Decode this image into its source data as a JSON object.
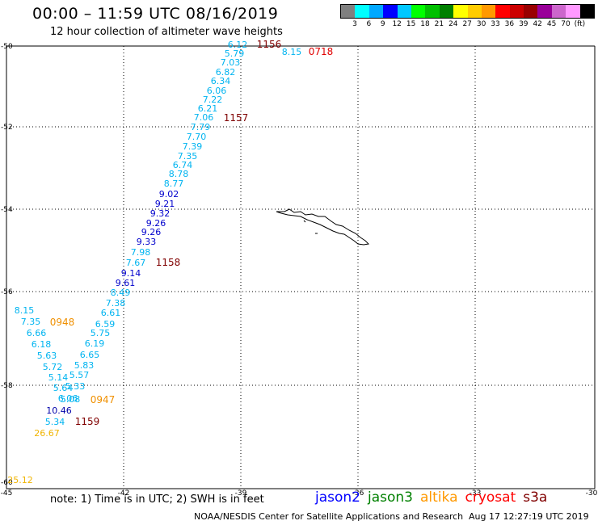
{
  "header": {
    "title": "00:00 – 11:59 UTC 08/16/2019",
    "subtitle": "12 hour collection of altimeter wave heights"
  },
  "legend": {
    "colors": [
      "#808080",
      "#00ffff",
      "#00a8ff",
      "#0000ff",
      "#00c8ff",
      "#00ff00",
      "#00c000",
      "#008000",
      "#ffff00",
      "#ffcc00",
      "#ff9900",
      "#ff0000",
      "#cc0000",
      "#990000",
      "#990099",
      "#cc66cc",
      "#ff99ff",
      "#000000"
    ],
    "labels": [
      "3",
      "6",
      "9",
      "12",
      "15",
      "18",
      "21",
      "24",
      "27",
      "30",
      "33",
      "36",
      "39",
      "42",
      "45",
      "70",
      "(ft)"
    ]
  },
  "map": {
    "x_ticks": [
      "-45",
      "-42",
      "-39",
      "-36",
      "-33",
      "-30"
    ],
    "y_ticks": [
      "-50",
      "-52",
      "-54",
      "-56",
      "-58",
      "-60"
    ],
    "track1_values": [
      {
        "v": "6.12",
        "c": "#00b4f0"
      },
      {
        "v": "5.79",
        "c": "#00b4f0"
      },
      {
        "v": "7.03",
        "c": "#00b4f0"
      },
      {
        "v": "6.82",
        "c": "#00b4f0"
      },
      {
        "v": "6.34",
        "c": "#00b4f0"
      },
      {
        "v": "6.06",
        "c": "#00b4f0"
      },
      {
        "v": "7.22",
        "c": "#00b4f0"
      },
      {
        "v": "6.21",
        "c": "#00b4f0"
      },
      {
        "v": "7.06",
        "c": "#00b4f0"
      },
      {
        "v": "7.79",
        "c": "#00b4f0"
      },
      {
        "v": "7.70",
        "c": "#00b4f0"
      },
      {
        "v": "7.39",
        "c": "#00b4f0"
      },
      {
        "v": "7.35",
        "c": "#00b4f0"
      },
      {
        "v": "6.74",
        "c": "#00b4f0"
      },
      {
        "v": "8.78",
        "c": "#00b4f0"
      },
      {
        "v": "8.77",
        "c": "#00b4f0"
      },
      {
        "v": "9.02",
        "c": "#0000cc"
      },
      {
        "v": "9.21",
        "c": "#0000cc"
      },
      {
        "v": "9.32",
        "c": "#0000cc"
      },
      {
        "v": "9.26",
        "c": "#0000cc"
      },
      {
        "v": "9.26",
        "c": "#0000cc"
      },
      {
        "v": "9.33",
        "c": "#0000cc"
      },
      {
        "v": "7.98",
        "c": "#00b4f0"
      },
      {
        "v": "7.67",
        "c": "#00b4f0"
      },
      {
        "v": "9.14",
        "c": "#0000cc"
      },
      {
        "v": "9.61",
        "c": "#0000cc"
      },
      {
        "v": "8.49",
        "c": "#00b4f0"
      },
      {
        "v": "7.38",
        "c": "#00b4f0"
      },
      {
        "v": "6.61",
        "c": "#00b4f0"
      },
      {
        "v": "6.59",
        "c": "#00b4f0"
      },
      {
        "v": "5.75",
        "c": "#00b4f0"
      },
      {
        "v": "6.19",
        "c": "#00b4f0"
      },
      {
        "v": "6.65",
        "c": "#00b4f0"
      },
      {
        "v": "5.83",
        "c": "#00b4f0"
      },
      {
        "v": "5.57",
        "c": "#00b4f0"
      },
      {
        "v": "5.33",
        "c": "#00b4f0"
      },
      {
        "v": "5.08",
        "c": "#00b4f0"
      }
    ],
    "track2_values": [
      {
        "v": "8.15",
        "c": "#00b4f0"
      },
      {
        "v": "7.35",
        "c": "#00b4f0"
      },
      {
        "v": "6.66",
        "c": "#00b4f0"
      },
      {
        "v": "6.18",
        "c": "#00b4f0"
      },
      {
        "v": "5.63",
        "c": "#00b4f0"
      },
      {
        "v": "5.72",
        "c": "#00b4f0"
      },
      {
        "v": "5.14",
        "c": "#00b4f0"
      },
      {
        "v": "5.64",
        "c": "#00b4f0"
      },
      {
        "v": "6.06",
        "c": "#00b4f0"
      },
      {
        "v": "10.46",
        "c": "#0000aa"
      },
      {
        "v": "5.34",
        "c": "#00b4f0"
      },
      {
        "v": "26.67",
        "c": "#f0b400"
      },
      {
        "v": "25.12",
        "c": "#f0b400"
      }
    ],
    "extra_values": [
      {
        "v": "8.15",
        "c": "#00b4f0"
      }
    ],
    "time_labels": [
      {
        "t": "1156",
        "c": "#800000"
      },
      {
        "t": "0718",
        "c": "#e00000"
      },
      {
        "t": "1157",
        "c": "#800000"
      },
      {
        "t": "1158",
        "c": "#800000"
      },
      {
        "t": "0948",
        "c": "#f09000"
      },
      {
        "t": "0947",
        "c": "#f09000"
      },
      {
        "t": "1159",
        "c": "#800000"
      }
    ]
  },
  "footer": {
    "note": "note:  1) Time is in UTC;  2) SWH is in feet",
    "satellites": [
      {
        "name": "jason2",
        "color": "#0000ff"
      },
      {
        "name": "jason3",
        "color": "#008000"
      },
      {
        "name": "altika",
        "color": "#ff9900"
      },
      {
        "name": "cryosat",
        "color": "#ff0000"
      },
      {
        "name": "s3a",
        "color": "#800000"
      }
    ],
    "credit": "NOAA/NESDIS Center for Satellite Applications and Research",
    "generated": "Aug 17 12:27:19 UTC 2019"
  }
}
